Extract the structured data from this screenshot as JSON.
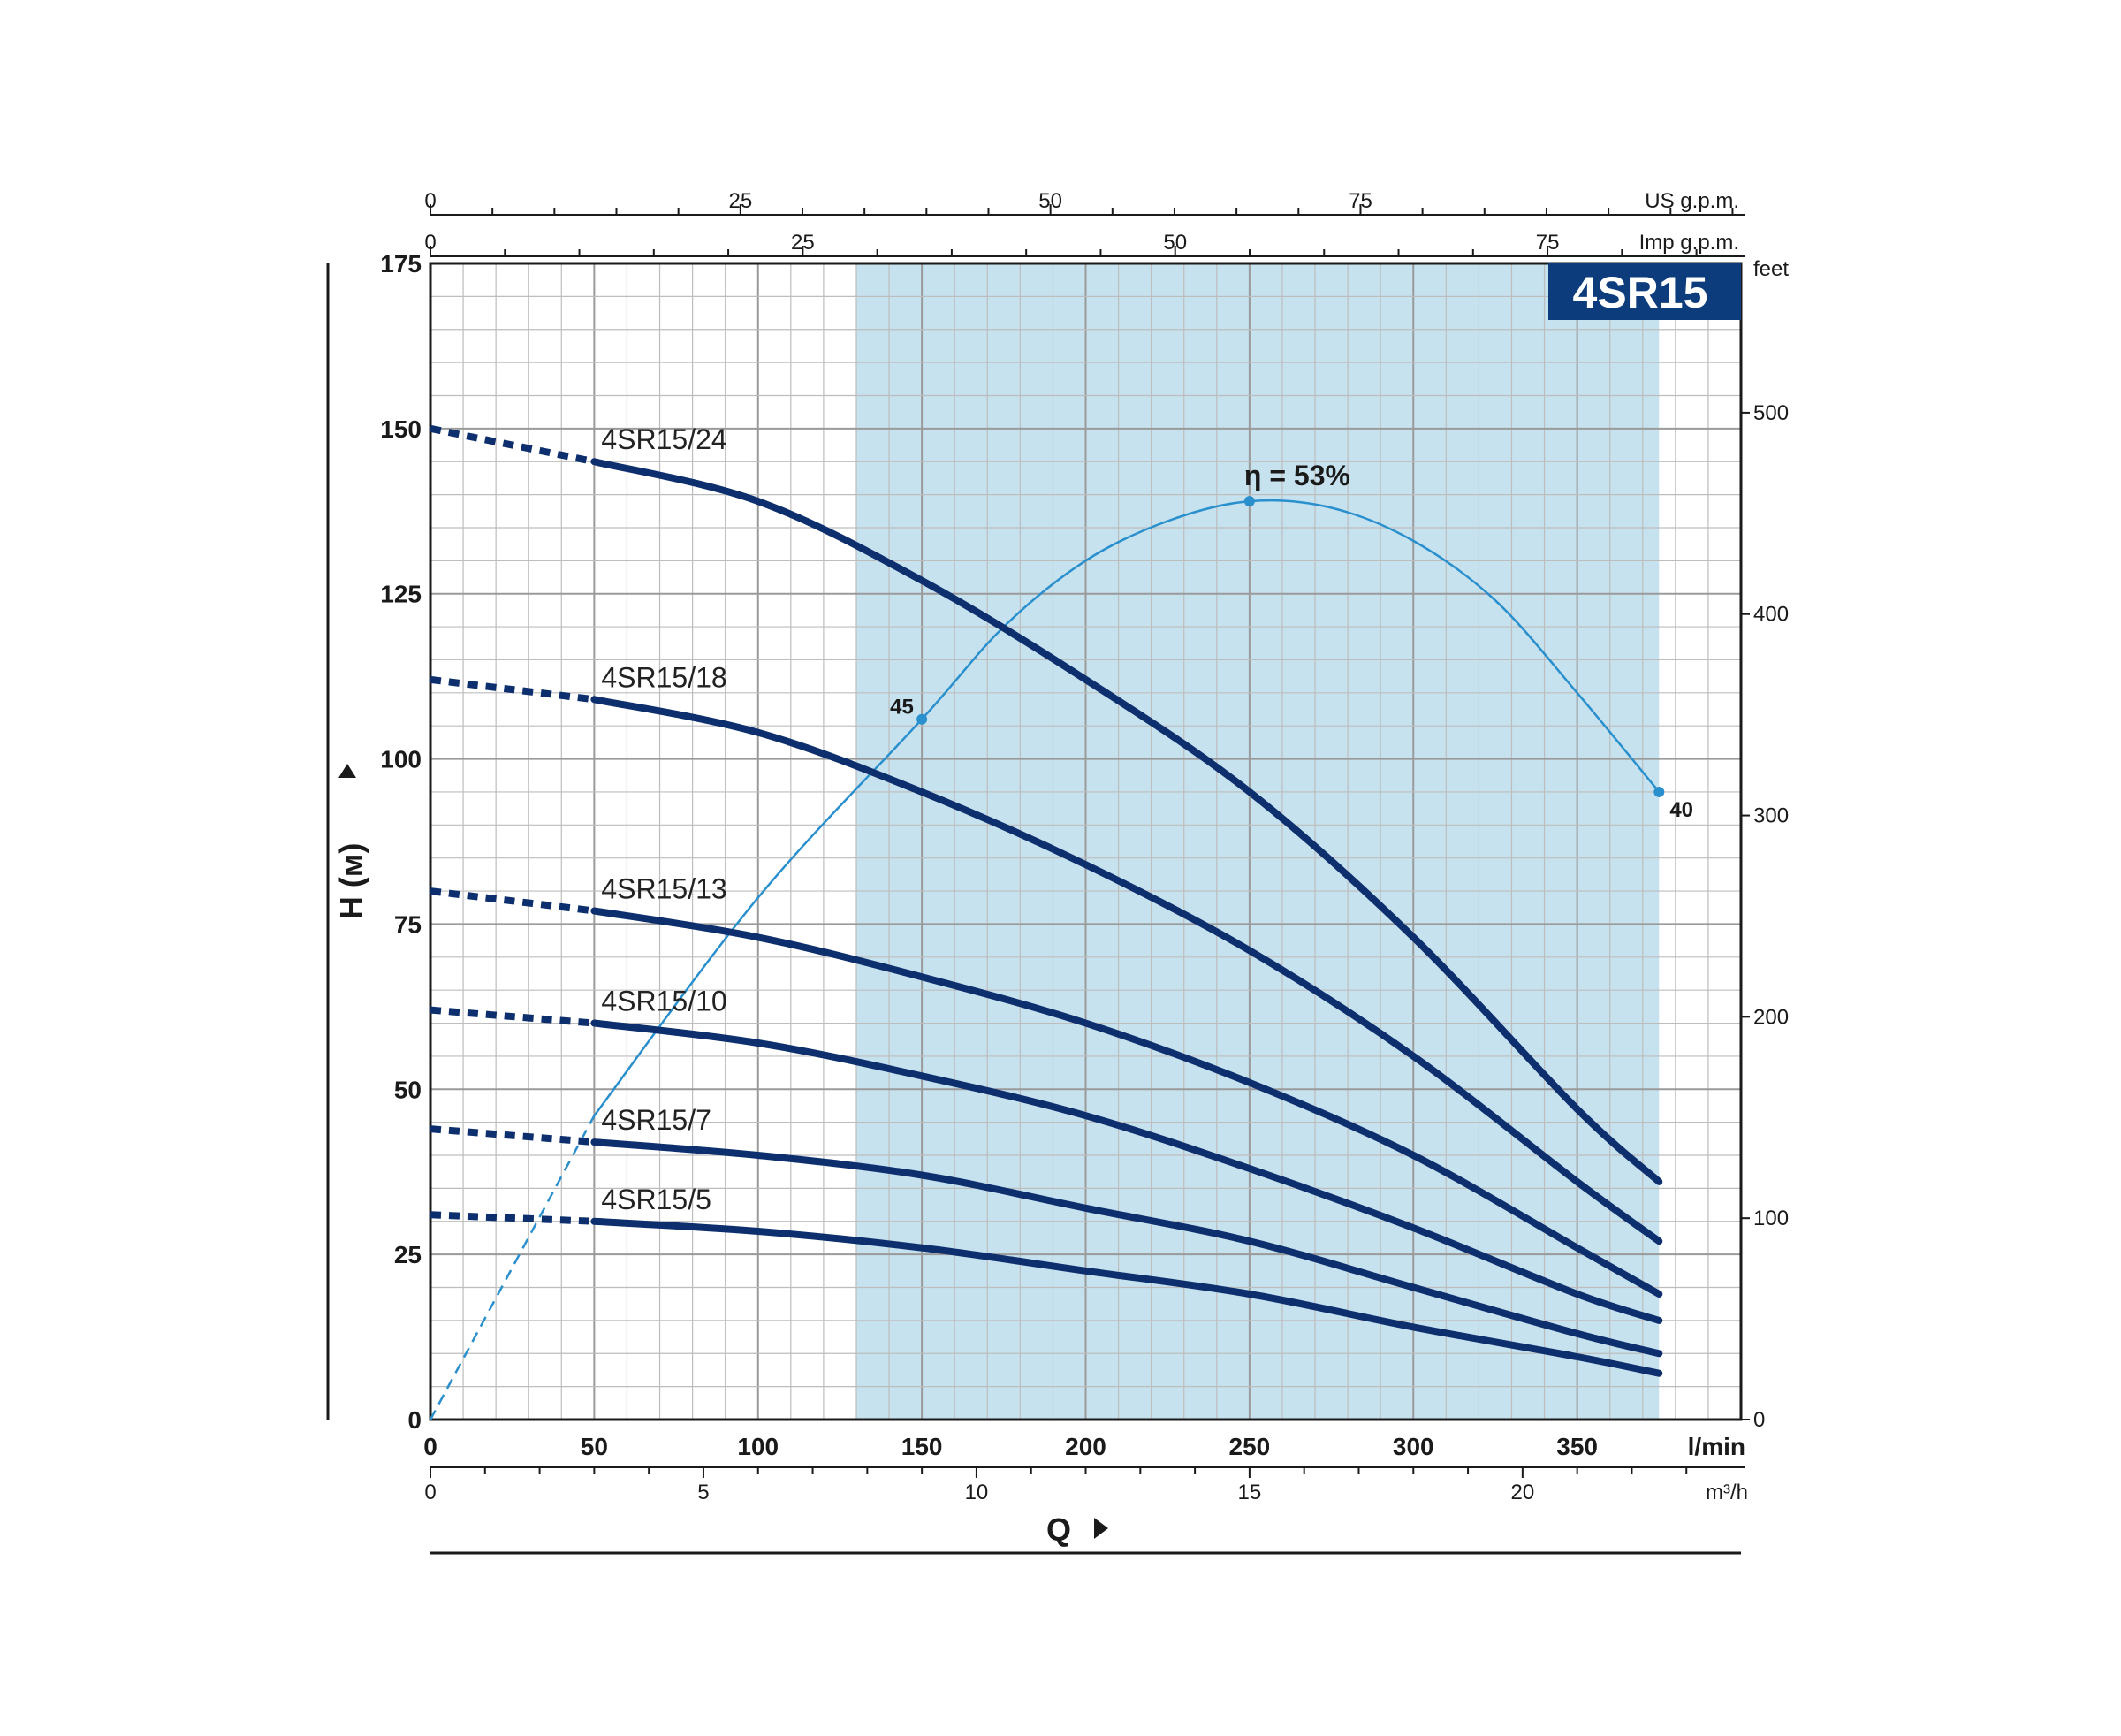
{
  "chart_data": {
    "type": "line",
    "badge": "4SR15",
    "x": {
      "label": "Q",
      "unit": "l/min",
      "lim": [
        0,
        400
      ],
      "ticks": [
        0,
        50,
        100,
        150,
        200,
        250,
        300,
        350
      ],
      "grid_step": 10
    },
    "y": {
      "label": "H (м)",
      "lim": [
        0,
        175
      ],
      "ticks": [
        0,
        25,
        50,
        75,
        100,
        125,
        150,
        175
      ],
      "grid_step": 5
    },
    "secondary_axes": {
      "us_gpm": {
        "unit": "US g.p.m.",
        "ticks": [
          0,
          25,
          50,
          75
        ],
        "factor_lpm": 3.785
      },
      "imp_gpm": {
        "unit": "Imp g.p.m.",
        "ticks": [
          0,
          25,
          50,
          75
        ],
        "factor_lpm": 4.546
      },
      "m3h": {
        "unit": "m³/h",
        "ticks": [
          0,
          5,
          10,
          15,
          20
        ],
        "factor_lpm": 16.667
      },
      "feet": {
        "unit": "feet",
        "ticks": [
          0,
          100,
          200,
          300,
          400,
          500
        ],
        "factor_m": 0.3048
      }
    },
    "recommended_range": [
      130,
      375
    ],
    "series": [
      {
        "name": "4SR15/24",
        "shutoff": 150,
        "points": [
          [
            50,
            145
          ],
          [
            100,
            139
          ],
          [
            150,
            127
          ],
          [
            200,
            112
          ],
          [
            250,
            95
          ],
          [
            300,
            73
          ],
          [
            350,
            47
          ],
          [
            375,
            36
          ]
        ]
      },
      {
        "name": "4SR15/18",
        "shutoff": 112,
        "points": [
          [
            50,
            109
          ],
          [
            100,
            104
          ],
          [
            150,
            95
          ],
          [
            200,
            84
          ],
          [
            250,
            71
          ],
          [
            300,
            55
          ],
          [
            350,
            36
          ],
          [
            375,
            27
          ]
        ]
      },
      {
        "name": "4SR15/13",
        "shutoff": 80,
        "points": [
          [
            50,
            77
          ],
          [
            100,
            73
          ],
          [
            150,
            67
          ],
          [
            200,
            60
          ],
          [
            250,
            51
          ],
          [
            300,
            40
          ],
          [
            350,
            26
          ],
          [
            375,
            19
          ]
        ]
      },
      {
        "name": "4SR15/10",
        "shutoff": 62,
        "points": [
          [
            50,
            60
          ],
          [
            100,
            57
          ],
          [
            150,
            52
          ],
          [
            200,
            46
          ],
          [
            250,
            38
          ],
          [
            300,
            29
          ],
          [
            350,
            19
          ],
          [
            375,
            15
          ]
        ]
      },
      {
        "name": "4SR15/7",
        "shutoff": 44,
        "points": [
          [
            50,
            42
          ],
          [
            100,
            40
          ],
          [
            150,
            37
          ],
          [
            200,
            32
          ],
          [
            250,
            27
          ],
          [
            300,
            20
          ],
          [
            350,
            13
          ],
          [
            375,
            10
          ]
        ]
      },
      {
        "name": "4SR15/5",
        "shutoff": 31,
        "points": [
          [
            50,
            30
          ],
          [
            100,
            28.5
          ],
          [
            150,
            26
          ],
          [
            200,
            22.5
          ],
          [
            250,
            19
          ],
          [
            300,
            14
          ],
          [
            350,
            9.5
          ],
          [
            375,
            7
          ]
        ]
      }
    ],
    "efficiency": {
      "label": "η = 53%",
      "dashed_to": 50,
      "points": [
        [
          0,
          0
        ],
        [
          50,
          46
        ],
        [
          100,
          79
        ],
        [
          150,
          106
        ],
        [
          175,
          120
        ],
        [
          200,
          130
        ],
        [
          225,
          136
        ],
        [
          250,
          139
        ],
        [
          275,
          138
        ],
        [
          300,
          133
        ],
        [
          325,
          124
        ],
        [
          350,
          110
        ],
        [
          375,
          95
        ]
      ],
      "markers": [
        {
          "x": 150,
          "y": 106,
          "label": "45"
        },
        {
          "x": 250,
          "y": 139,
          "label": ""
        },
        {
          "x": 375,
          "y": 95,
          "label": "40"
        }
      ]
    },
    "colors": {
      "curve": "#0d2f6e",
      "efficiency": "#2a8fcd",
      "band": "#c6e2ef",
      "grid": "#bdbdbd",
      "badge": "#0d3c7d"
    }
  }
}
